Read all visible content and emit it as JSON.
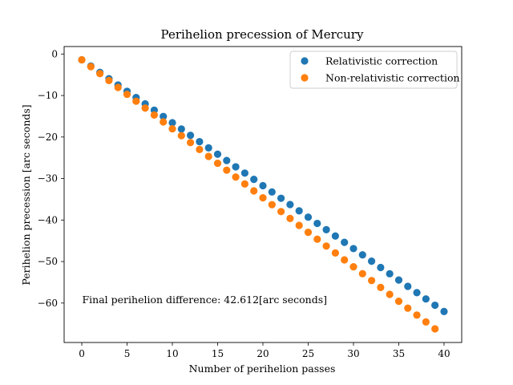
{
  "chart_data": {
    "type": "scatter",
    "title": "Perihelion precession of Mercury",
    "xlabel": "Number of perihelion passes",
    "ylabel": "Perihelion precession [arc seconds]",
    "xlim": [
      -1.95,
      41.95
    ],
    "ylim": [
      -69.5,
      1.8
    ],
    "xticks": [
      0,
      5,
      10,
      15,
      20,
      25,
      30,
      35,
      40
    ],
    "xtick_labels": [
      "0",
      "5",
      "10",
      "15",
      "20",
      "25",
      "30",
      "35",
      "40"
    ],
    "yticks": [
      0,
      -10,
      -20,
      -30,
      -40,
      -50,
      -60
    ],
    "ytick_labels": [
      "0",
      "−10",
      "−20",
      "−30",
      "−40",
      "−50",
      "−60"
    ],
    "grid": false,
    "legend_position": "top-right",
    "annotation": "Final perihelion difference: 42.612[arc seconds]",
    "series": [
      {
        "name": "Relativistic correction",
        "color": "#1f77b4",
        "x_start": 0,
        "x_step": 1,
        "count": 41,
        "y_start": -1.4,
        "y_step": -1.516
      },
      {
        "name": "Non-relativistic correction",
        "color": "#ff7f0e",
        "x_start": 0,
        "x_step": 1,
        "count": 40,
        "y_start": -1.4,
        "y_step": -1.662
      }
    ]
  }
}
